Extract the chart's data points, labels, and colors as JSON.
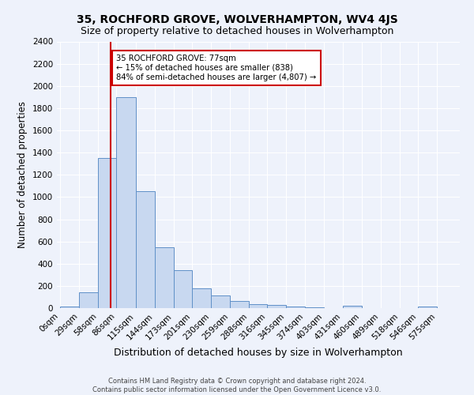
{
  "title": "35, ROCHFORD GROVE, WOLVERHAMPTON, WV4 4JS",
  "subtitle": "Size of property relative to detached houses in Wolverhampton",
  "xlabel": "Distribution of detached houses by size in Wolverhampton",
  "ylabel": "Number of detached properties",
  "footer_line1": "Contains HM Land Registry data © Crown copyright and database right 2024.",
  "footer_line2": "Contains public sector information licensed under the Open Government Licence v3.0.",
  "bin_labels": [
    "0sqm",
    "29sqm",
    "58sqm",
    "86sqm",
    "115sqm",
    "144sqm",
    "173sqm",
    "201sqm",
    "230sqm",
    "259sqm",
    "288sqm",
    "316sqm",
    "345sqm",
    "374sqm",
    "403sqm",
    "431sqm",
    "460sqm",
    "489sqm",
    "518sqm",
    "546sqm",
    "575sqm"
  ],
  "bar_heights": [
    15,
    140,
    1350,
    1900,
    1050,
    545,
    340,
    180,
    115,
    65,
    35,
    25,
    15,
    8,
    0,
    20,
    0,
    0,
    0,
    15,
    0
  ],
  "bar_color": "#c8d8f0",
  "bar_edge_color": "#6090c8",
  "red_line_x": 77,
  "annotation_text": "35 ROCHFORD GROVE: 77sqm\n← 15% of detached houses are smaller (838)\n84% of semi-detached houses are larger (4,807) →",
  "annotation_box_color": "#ffffff",
  "annotation_box_edge_color": "#cc0000",
  "ylim": [
    0,
    2400
  ],
  "yticks": [
    0,
    200,
    400,
    600,
    800,
    1000,
    1200,
    1400,
    1600,
    1800,
    2000,
    2200,
    2400
  ],
  "background_color": "#eef2fb",
  "grid_color": "#ffffff",
  "title_fontsize": 10,
  "subtitle_fontsize": 9,
  "axis_label_fontsize": 8.5,
  "tick_fontsize": 7.5,
  "footer_fontsize": 6
}
